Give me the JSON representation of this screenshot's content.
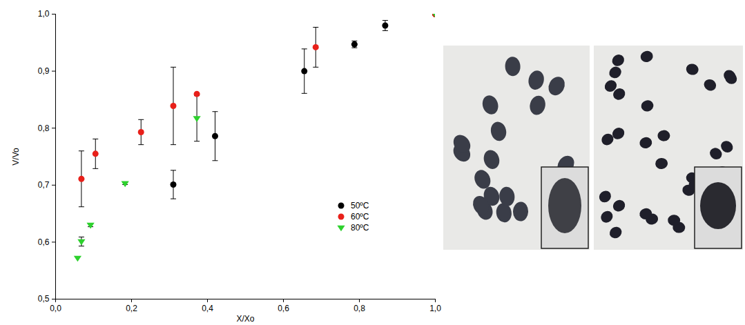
{
  "chart_data": {
    "type": "scatter",
    "x_label": "X/Xo",
    "y_label": "V/Vo",
    "xlim": [
      0,
      1
    ],
    "ylim": [
      0.5,
      1
    ],
    "xticks": [
      {
        "value": 0,
        "label": "0,0"
      },
      {
        "value": 0.2,
        "label": "0,2"
      },
      {
        "value": 0.4,
        "label": "0,4"
      },
      {
        "value": 0.6,
        "label": "0,6"
      },
      {
        "value": 0.8,
        "label": "0,8"
      },
      {
        "value": 1,
        "label": "1,0"
      }
    ],
    "yticks": [
      {
        "value": 0.5,
        "label": "0,5"
      },
      {
        "value": 0.6,
        "label": "0,6"
      },
      {
        "value": 0.7,
        "label": "0,7"
      },
      {
        "value": 0.8,
        "label": "0,8"
      },
      {
        "value": 0.9,
        "label": "0,9"
      },
      {
        "value": 1,
        "label": "1,0"
      }
    ],
    "legend": "lower right",
    "grid": false,
    "series": [
      {
        "name": "50ºC",
        "color": "#000000",
        "marker": "circle",
        "x": [
          0.31,
          0.42,
          0.655,
          0.787,
          0.868,
          1.0
        ],
        "values": [
          0.701,
          0.786,
          0.9,
          0.947,
          0.98,
          1.0
        ],
        "errors": [
          0.025,
          0.043,
          0.039,
          0.006,
          0.009,
          0
        ]
      },
      {
        "name": "60ºC",
        "color": "#e8201a",
        "marker": "circle",
        "x": [
          0.068,
          0.105,
          0.225,
          0.31,
          0.372,
          0.685,
          1.0
        ],
        "values": [
          0.711,
          0.755,
          0.793,
          0.839,
          0.86,
          0.942,
          1.0
        ],
        "errors": [
          0.049,
          0.026,
          0.022,
          0.068,
          0,
          0.035,
          0
        ]
      },
      {
        "name": "80ºC",
        "color": "#2ed12e",
        "marker": "triangle-down",
        "x": [
          0.058,
          0.068,
          0.092,
          0.183,
          0.372,
          1.0
        ],
        "values": [
          0.572,
          0.601,
          0.63,
          0.703,
          0.817,
          1.0
        ],
        "errors": [
          0,
          0.008,
          0.003,
          0.002,
          0.04,
          0
        ]
      }
    ]
  }
}
